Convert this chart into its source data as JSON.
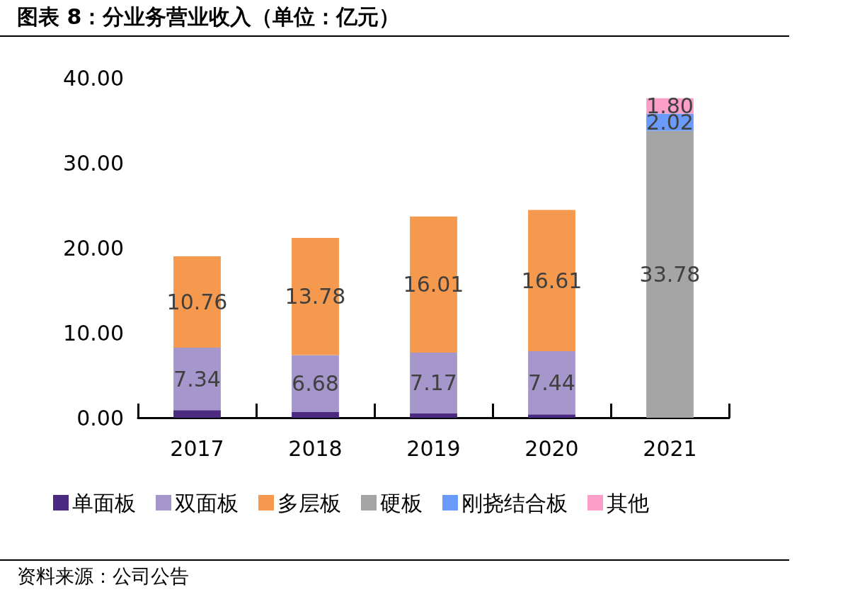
{
  "chart_data": {
    "type": "bar",
    "title": "图表 8：分业务营业收入（单位：亿元）",
    "stacked": true,
    "categories": [
      "2017",
      "2018",
      "2019",
      "2020",
      "2021"
    ],
    "series": [
      {
        "name": "单面板",
        "color": "#4b2a82",
        "values": [
          0.9,
          0.7,
          0.5,
          0.4,
          null
        ],
        "value_labels": [
          null,
          null,
          null,
          null,
          null
        ]
      },
      {
        "name": "双面板",
        "color": "#a597cc",
        "values": [
          7.34,
          6.68,
          7.17,
          7.44,
          null
        ],
        "value_labels": [
          "7.34",
          "6.68",
          "7.17",
          "7.44",
          null
        ]
      },
      {
        "name": "多层板",
        "color": "#f5994e",
        "values": [
          10.76,
          13.78,
          16.01,
          16.61,
          null
        ],
        "value_labels": [
          "10.76",
          "13.78",
          "16.01",
          "16.61",
          null
        ]
      },
      {
        "name": "硬板",
        "color": "#a5a5a5",
        "values": [
          null,
          null,
          null,
          null,
          33.78
        ],
        "value_labels": [
          null,
          null,
          null,
          null,
          "33.78"
        ]
      },
      {
        "name": "刚挠结合板",
        "color": "#6b9bfa",
        "values": [
          null,
          null,
          null,
          null,
          2.02
        ],
        "value_labels": [
          null,
          null,
          null,
          null,
          "2.02"
        ]
      },
      {
        "name": "其他",
        "color": "#fb9fca",
        "values": [
          null,
          null,
          null,
          null,
          1.8
        ],
        "value_labels": [
          null,
          null,
          null,
          null,
          "1.80"
        ]
      }
    ],
    "ylim": [
      0,
      40
    ],
    "yticks": [
      {
        "value": 0,
        "label": "0.00"
      },
      {
        "value": 10,
        "label": "10.00"
      },
      {
        "value": 20,
        "label": "20.00"
      },
      {
        "value": 30,
        "label": "30.00"
      },
      {
        "value": 40,
        "label": "40.00"
      }
    ],
    "grid": false,
    "legend": "bottom",
    "annotations": [
      "资料来源：公司公告"
    ]
  }
}
